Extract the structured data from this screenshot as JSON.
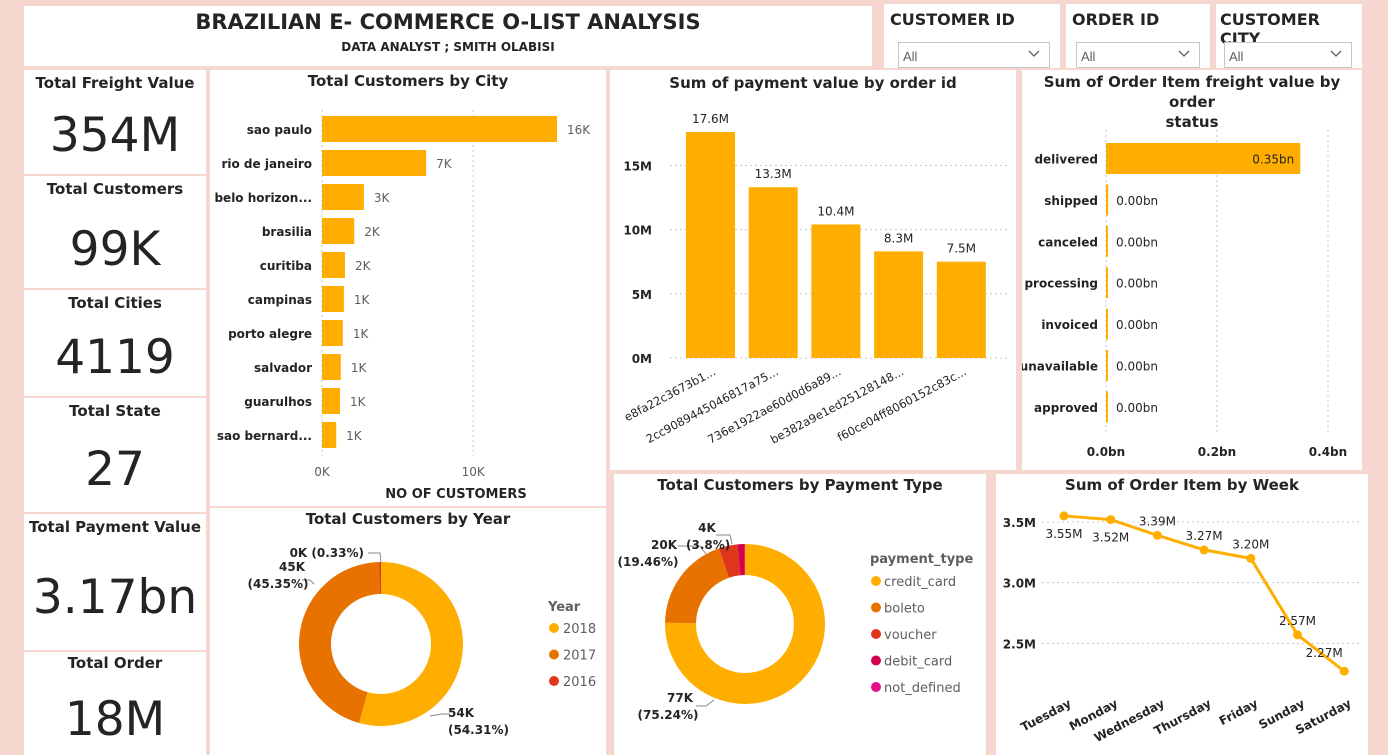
{
  "header": {
    "title": "BRAZILIAN E- COMMERCE O-LIST ANALYSIS",
    "subtitle": "DATA ANALYST ; SMITH OLABISI"
  },
  "slicers": [
    {
      "title": "CUSTOMER ID",
      "value": "All"
    },
    {
      "title": "ORDER ID",
      "value": "All"
    },
    {
      "title": "CUSTOMER CITY",
      "value": "All"
    }
  ],
  "kpis": [
    {
      "label": "Total Freight Value",
      "value": "354M"
    },
    {
      "label": "Total Customers",
      "value": "99K"
    },
    {
      "label": "Total Cities",
      "value": "4119"
    },
    {
      "label": "Total State",
      "value": "27"
    },
    {
      "label": "Total Payment Value",
      "value": "3.17bn"
    },
    {
      "label": "Total Order",
      "value": "18M"
    }
  ],
  "colors": {
    "orange": "#ffae00",
    "dark_orange": "#e87200",
    "red": "#e0361c",
    "crimson": "#d6004f",
    "pink": "#e60f8a",
    "grid": "#c8c6c4"
  },
  "chart_data": [
    {
      "id": "city",
      "type": "bar",
      "orientation": "horizontal",
      "title": "Total Customers by City",
      "xlabel": "NO OF CUSTOMERS",
      "categories": [
        "sao paulo",
        "rio de janeiro",
        "belo horizon...",
        "brasilia",
        "curitiba",
        "campinas",
        "porto alegre",
        "salvador",
        "guarulhos",
        "sao bernard..."
      ],
      "values": [
        15540,
        6882,
        2773,
        2131,
        1521,
        1444,
        1379,
        1245,
        1189,
        938
      ],
      "labels": [
        "16K",
        "7K",
        "3K",
        "2K",
        "2K",
        "1K",
        "1K",
        "1K",
        "1K",
        "1K"
      ],
      "xlim": [
        0,
        15540
      ],
      "xticks": [
        {
          "v": 0,
          "label": "0K"
        },
        {
          "v": 10000,
          "label": "10K"
        }
      ]
    },
    {
      "id": "payment",
      "type": "bar",
      "title": "Sum of payment value by order id",
      "categories": [
        "e8fa22c3673b1...",
        "2cc9089445046817a75...",
        "736e1922ae60d0d6a89...",
        "be382a9e1ed25128148...",
        "f60ce04ff8060152c83c..."
      ],
      "values": [
        17.6,
        13.3,
        10.4,
        8.3,
        7.5
      ],
      "labels": [
        "17.6M",
        "13.3M",
        "10.4M",
        "8.3M",
        "7.5M"
      ],
      "ylim": [
        0,
        17.6
      ],
      "yticks": [
        {
          "v": 0,
          "label": "0M"
        },
        {
          "v": 5,
          "label": "5M"
        },
        {
          "v": 10,
          "label": "10M"
        },
        {
          "v": 15,
          "label": "15M"
        }
      ]
    },
    {
      "id": "status",
      "type": "bar",
      "orientation": "horizontal",
      "title": "Sum of Order Item freight value by order status",
      "title_lines": [
        "Sum of Order Item freight value by order",
        "status"
      ],
      "categories": [
        "delivered",
        "shipped",
        "canceled",
        "processing",
        "invoiced",
        "unavailable",
        "approved"
      ],
      "values": [
        0.35,
        0.004,
        0.001,
        0.001,
        0.001,
        0.001,
        0.0001
      ],
      "labels": [
        "0.35bn",
        "0.00bn",
        "0.00bn",
        "0.00bn",
        "0.00bn",
        "0.00bn",
        "0.00bn"
      ],
      "xlim": [
        0,
        0.4
      ],
      "xticks": [
        {
          "v": 0,
          "label": "0.0bn"
        },
        {
          "v": 0.2,
          "label": "0.2bn"
        },
        {
          "v": 0.4,
          "label": "0.4bn"
        }
      ]
    },
    {
      "id": "year",
      "type": "pie",
      "donut": true,
      "title": "Total Customers by Year",
      "legend_title": "Year",
      "slices": [
        {
          "name": "2018",
          "value": 54.31,
          "label1": "54K",
          "label2": "(54.31%)"
        },
        {
          "name": "2017",
          "value": 45.35,
          "label1": "45K",
          "label2": "(45.35%)"
        },
        {
          "name": "2016",
          "value": 0.33,
          "label1": "0K (0.33%)",
          "label2": ""
        }
      ]
    },
    {
      "id": "ptype",
      "type": "pie",
      "donut": true,
      "title": "Total Customers by Payment Type",
      "legend_title": "payment_type",
      "slices": [
        {
          "name": "credit_card",
          "value": 75.24,
          "label1": "77K",
          "label2": "(75.24%)"
        },
        {
          "name": "boleto",
          "value": 19.46,
          "label1": "20K",
          "label2": "(19.46%)"
        },
        {
          "name": "voucher",
          "value": 3.8,
          "label1": "4K",
          "label2": "(3.8%)"
        },
        {
          "name": "debit_card",
          "value": 1.44,
          "label1": "",
          "label2": ""
        },
        {
          "name": "not_defined",
          "value": 0.06,
          "label1": "",
          "label2": ""
        }
      ]
    },
    {
      "id": "week",
      "type": "line",
      "title": "Sum of Order Item by Week",
      "categories": [
        "Tuesday",
        "Monday",
        "Wednesday",
        "Thursday",
        "Friday",
        "Sunday",
        "Saturday"
      ],
      "values": [
        3.55,
        3.52,
        3.39,
        3.27,
        3.2,
        2.57,
        2.27
      ],
      "labels": [
        "3.55M",
        "3.52M",
        "3.39M",
        "3.27M",
        "3.20M",
        "2.57M",
        "2.27M"
      ],
      "ylim": [
        2.0,
        3.5
      ],
      "yticks": [
        {
          "v": 2.5,
          "label": "2.5M"
        },
        {
          "v": 3.0,
          "label": "3.0M"
        },
        {
          "v": 3.5,
          "label": "3.5M"
        }
      ]
    }
  ]
}
